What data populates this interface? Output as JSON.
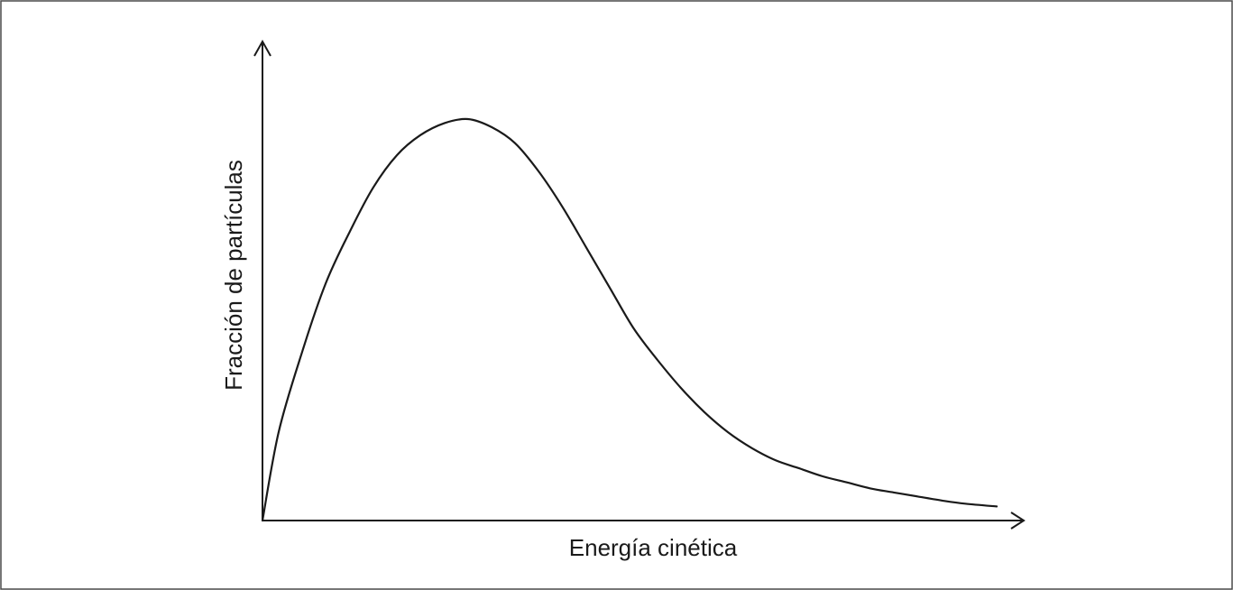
{
  "chart_data": {
    "type": "line",
    "title": "",
    "xlabel": "Energía cinética",
    "ylabel": "Fracción de partículas",
    "ticks": "none",
    "grid": false,
    "legend": "none",
    "xlim": [
      0,
      10
    ],
    "ylim": [
      0,
      1
    ],
    "series": [
      {
        "x": [
          0,
          0.22,
          0.54,
          0.86,
          1.19,
          1.51,
          1.83,
          2.15,
          2.48,
          2.8,
          3.12,
          3.44,
          3.76,
          4.09,
          4.41,
          4.73,
          5.05,
          5.38,
          5.7,
          6.02,
          6.34,
          6.67,
          6.99,
          7.31,
          7.63,
          7.96,
          8.28,
          8.6,
          8.92,
          9.25,
          9.57,
          10.0
        ],
        "y": [
          0,
          0.22,
          0.42,
          0.59,
          0.72,
          0.83,
          0.91,
          0.96,
          0.99,
          1.0,
          0.98,
          0.94,
          0.87,
          0.78,
          0.68,
          0.58,
          0.48,
          0.4,
          0.33,
          0.27,
          0.22,
          0.18,
          0.15,
          0.13,
          0.11,
          0.095,
          0.08,
          0.07,
          0.06,
          0.05,
          0.042,
          0.035
        ]
      }
    ]
  }
}
